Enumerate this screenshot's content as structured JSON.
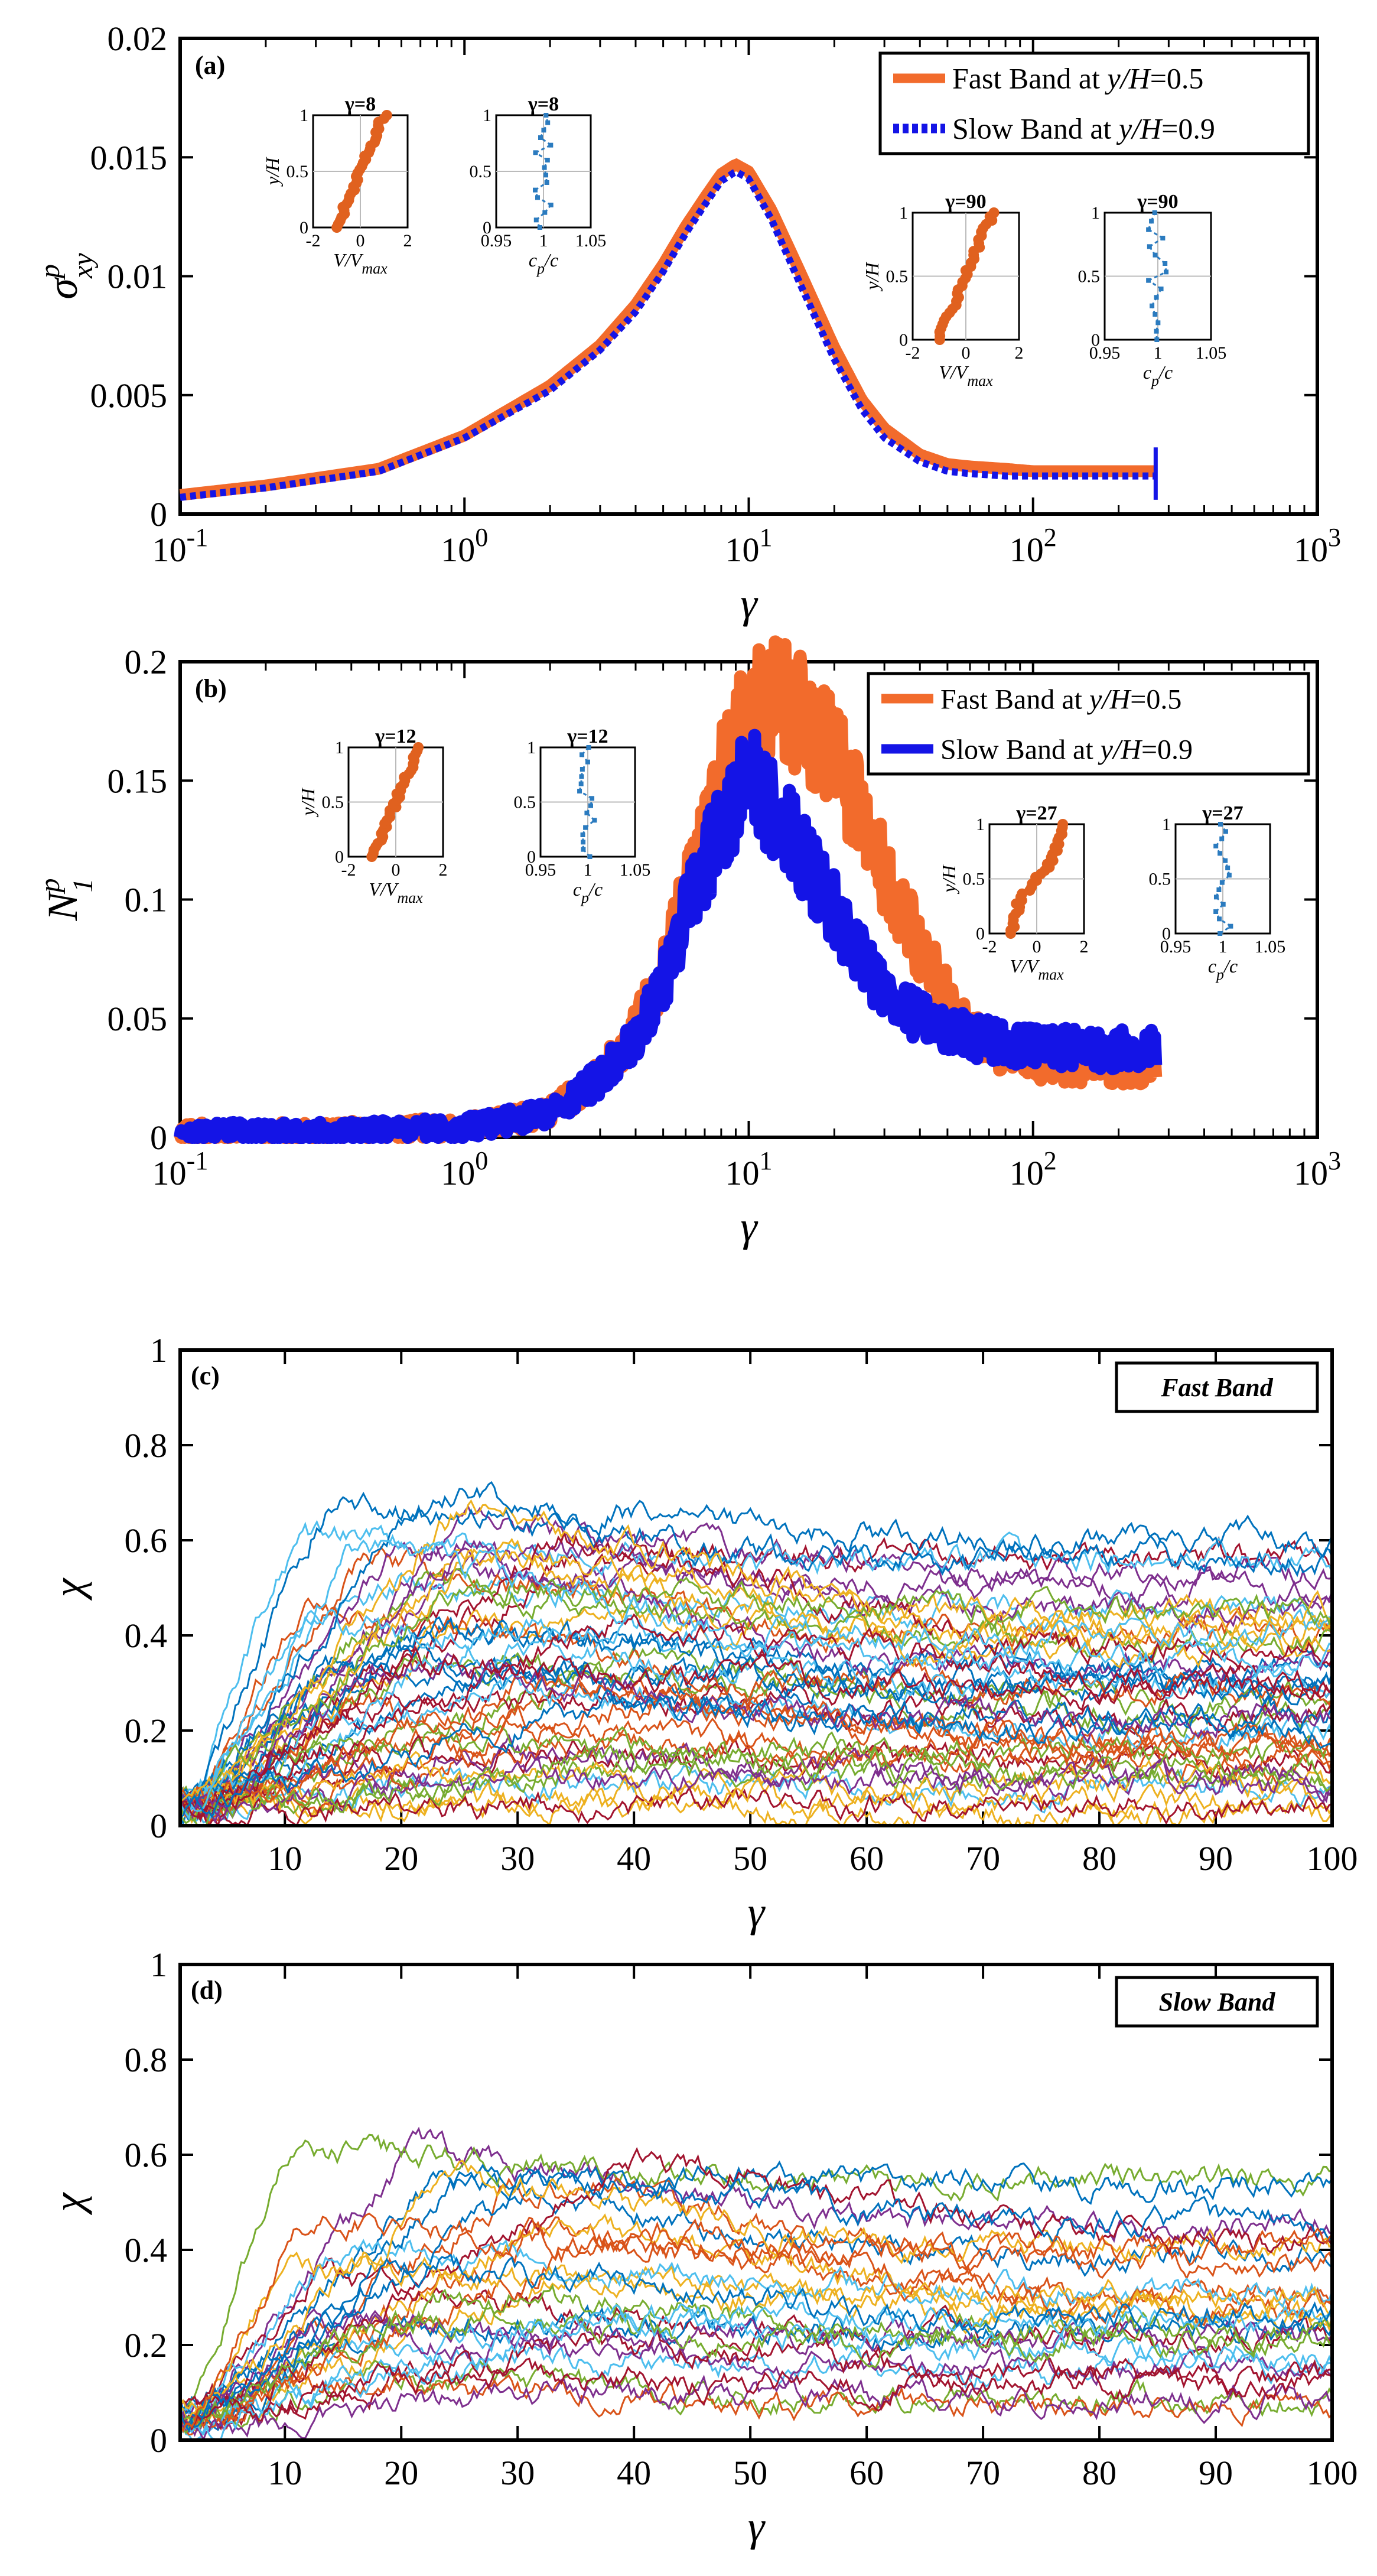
{
  "chart_data": [
    {
      "type": "line",
      "panel_label": "(a)",
      "xscale": "log",
      "xlim": [
        0.1,
        1000
      ],
      "ylim": [
        0,
        0.02
      ],
      "xlabel": "γ",
      "ylabel": {
        "base": "σ",
        "sup": "p",
        "sub": "xy"
      },
      "xtick_labels": [
        {
          "base": "10",
          "exp": "-1"
        },
        {
          "base": "10",
          "exp": "0"
        },
        {
          "base": "10",
          "exp": "1"
        },
        {
          "base": "10",
          "exp": "2"
        },
        {
          "base": "10",
          "exp": "3"
        }
      ],
      "yticks": [
        0,
        0.005,
        0.01,
        0.015,
        0.02
      ],
      "ytick_labels": [
        "0",
        "0.005",
        "0.01",
        "0.015",
        "0.02"
      ],
      "legend": {
        "position": "top-right",
        "entries": [
          {
            "prefix": "Fast Band at ",
            "var": "y/H",
            "suffix": "=0.5",
            "color": "#f26b2c",
            "style": "solid"
          },
          {
            "prefix": "Slow Band at ",
            "var": "y/H",
            "suffix": "=0.9",
            "color": "#1414e6",
            "style": "dotted"
          }
        ]
      },
      "series": [
        {
          "name": "Fast Band at y/H=0.5",
          "color": "#f26b2c",
          "x": [
            0.1,
            0.2,
            0.5,
            1,
            2,
            3,
            4,
            5,
            6,
            7,
            8,
            9,
            10,
            12,
            15,
            20,
            25,
            30,
            40,
            50,
            60,
            80,
            100,
            150,
            200,
            270
          ],
          "y": [
            0.0008,
            0.0012,
            0.0019,
            0.0033,
            0.0054,
            0.0071,
            0.0088,
            0.0105,
            0.0121,
            0.0133,
            0.0143,
            0.0147,
            0.0144,
            0.0128,
            0.0103,
            0.007,
            0.0048,
            0.0036,
            0.0025,
            0.0021,
            0.002,
            0.0019,
            0.0018,
            0.0018,
            0.0018,
            0.0018
          ]
        },
        {
          "name": "Slow Band at y/H=0.9",
          "color": "#1414e6",
          "x": [
            0.1,
            0.2,
            0.5,
            1,
            2,
            3,
            4,
            5,
            6,
            7,
            8,
            9,
            10,
            12,
            15,
            20,
            25,
            30,
            40,
            50,
            60,
            80,
            100,
            150,
            200,
            270
          ],
          "y": [
            0.0007,
            0.0011,
            0.0018,
            0.0032,
            0.0052,
            0.0069,
            0.0085,
            0.0102,
            0.0118,
            0.013,
            0.014,
            0.0144,
            0.0141,
            0.0124,
            0.0098,
            0.0065,
            0.0044,
            0.0032,
            0.0022,
            0.0018,
            0.0017,
            0.0016,
            0.0016,
            0.0016,
            0.0016,
            0.0016
          ]
        }
      ],
      "insets": [
        {
          "title": "γ=8",
          "kind": "velocity",
          "xticks": [
            -2,
            0,
            2
          ],
          "xtick_labels": [
            "-2",
            "0",
            "2"
          ],
          "yticks": [
            0,
            0.5,
            1
          ],
          "ytick_labels": [
            "0",
            "0.5",
            "1"
          ],
          "xlabel": {
            "base": "V/V",
            "sub": "max"
          },
          "ylabel": "y/H"
        },
        {
          "title": "γ=8",
          "kind": "packing",
          "xticks": [
            0.95,
            1,
            1.05
          ],
          "xtick_labels": [
            "0.95",
            "1",
            "1.05"
          ],
          "yticks": [
            0,
            0.5,
            1
          ],
          "ytick_labels": [
            "0",
            "0.5",
            "1"
          ],
          "xlabel": {
            "base": "c",
            "sub": "p",
            "rest": "/c"
          },
          "ylabel": ""
        },
        {
          "title": "γ=90",
          "kind": "velocity",
          "xticks": [
            -2,
            0,
            2
          ],
          "xtick_labels": [
            "-2",
            "0",
            "2"
          ],
          "yticks": [
            0,
            0.5,
            1
          ],
          "ytick_labels": [
            "0",
            "0.5",
            "1"
          ],
          "xlabel": {
            "base": "V/V",
            "sub": "max"
          },
          "ylabel": "y/H"
        },
        {
          "title": "γ=90",
          "kind": "packing",
          "xticks": [
            0.95,
            1,
            1.05
          ],
          "xtick_labels": [
            "0.95",
            "1",
            "1.05"
          ],
          "yticks": [
            0,
            0.5,
            1
          ],
          "ytick_labels": [
            "0",
            "0.5",
            "1"
          ],
          "xlabel": {
            "base": "c",
            "sub": "p",
            "rest": "/c"
          },
          "ylabel": ""
        }
      ]
    },
    {
      "type": "line",
      "panel_label": "(b)",
      "xscale": "log",
      "xlim": [
        0.1,
        1000
      ],
      "ylim": [
        0,
        0.2
      ],
      "xlabel": "γ",
      "ylabel": {
        "base": "N",
        "sup": "p",
        "sub": "1"
      },
      "xtick_labels": [
        {
          "base": "10",
          "exp": "-1"
        },
        {
          "base": "10",
          "exp": "0"
        },
        {
          "base": "10",
          "exp": "1"
        },
        {
          "base": "10",
          "exp": "2"
        },
        {
          "base": "10",
          "exp": "3"
        }
      ],
      "yticks": [
        0,
        0.05,
        0.1,
        0.15,
        0.2
      ],
      "ytick_labels": [
        "0",
        "0.05",
        "0.1",
        "0.15",
        "0.2"
      ],
      "legend": {
        "position": "top-right",
        "entries": [
          {
            "prefix": "Fast Band at ",
            "var": "y/H",
            "suffix": "=0.5",
            "color": "#f26b2c",
            "style": "solid"
          },
          {
            "prefix": "Slow Band at ",
            "var": "y/H",
            "suffix": "=0.9",
            "color": "#1414e6",
            "style": "solid"
          }
        ]
      },
      "series": [
        {
          "name": "Fast Band at y/H=0.5",
          "color": "#f26b2c",
          "x": [
            0.1,
            0.3,
            1,
            2,
            3,
            4,
            5,
            6,
            8,
            10,
            12,
            15,
            20,
            25,
            30,
            40,
            50,
            60,
            80,
            100,
            150,
            200,
            270
          ],
          "y": [
            0.002,
            0.002,
            0.004,
            0.01,
            0.025,
            0.045,
            0.07,
            0.1,
            0.15,
            0.18,
            0.185,
            0.178,
            0.16,
            0.135,
            0.11,
            0.08,
            0.06,
            0.045,
            0.035,
            0.032,
            0.03,
            0.03,
            0.03
          ]
        },
        {
          "name": "Slow Band at y/H=0.9",
          "color": "#1414e6",
          "x": [
            0.1,
            0.3,
            1,
            2,
            3,
            4,
            5,
            6,
            8,
            10,
            12,
            15,
            20,
            25,
            30,
            40,
            50,
            60,
            80,
            100,
            150,
            200,
            270
          ],
          "y": [
            0.002,
            0.002,
            0.004,
            0.01,
            0.025,
            0.042,
            0.065,
            0.095,
            0.13,
            0.15,
            0.14,
            0.12,
            0.095,
            0.075,
            0.06,
            0.05,
            0.045,
            0.042,
            0.04,
            0.038,
            0.037,
            0.037,
            0.037
          ]
        }
      ],
      "insets": [
        {
          "title": "γ=12",
          "kind": "velocity",
          "xticks": [
            -2,
            0,
            2
          ],
          "xtick_labels": [
            "-2",
            "0",
            "2"
          ],
          "yticks": [
            0,
            0.5,
            1
          ],
          "ytick_labels": [
            "0",
            "0.5",
            "1"
          ],
          "xlabel": {
            "base": "V/V",
            "sub": "max"
          },
          "ylabel": "y/H"
        },
        {
          "title": "γ=12",
          "kind": "packing",
          "xticks": [
            0.95,
            1,
            1.05
          ],
          "xtick_labels": [
            "0.95",
            "1",
            "1.05"
          ],
          "yticks": [
            0,
            0.5,
            1
          ],
          "ytick_labels": [
            "0",
            "0.5",
            "1"
          ],
          "xlabel": {
            "base": "c",
            "sub": "p",
            "rest": "/c"
          },
          "ylabel": ""
        },
        {
          "title": "γ=27",
          "kind": "velocity",
          "xticks": [
            -2,
            0,
            2
          ],
          "xtick_labels": [
            "-2",
            "0",
            "2"
          ],
          "yticks": [
            0,
            0.5,
            1
          ],
          "ytick_labels": [
            "0",
            "0.5",
            "1"
          ],
          "xlabel": {
            "base": "V/V",
            "sub": "max"
          },
          "ylabel": "y/H"
        },
        {
          "title": "γ=27",
          "kind": "packing",
          "xticks": [
            0.95,
            1,
            1.05
          ],
          "xtick_labels": [
            "0.95",
            "1",
            "1.05"
          ],
          "yticks": [
            0,
            0.5,
            1
          ],
          "ytick_labels": [
            "0",
            "0.5",
            "1"
          ],
          "xlabel": {
            "base": "c",
            "sub": "p",
            "rest": "/c"
          },
          "ylabel": ""
        }
      ]
    },
    {
      "type": "line",
      "panel_label": "(c)",
      "band_label": "Fast Band",
      "xscale": "linear",
      "xlim": [
        1,
        100
      ],
      "ylim": [
        0,
        1
      ],
      "xlabel": "γ",
      "ylabel": "χ",
      "xticks": [
        10,
        20,
        30,
        40,
        50,
        60,
        70,
        80,
        90,
        100
      ],
      "xtick_labels": [
        "10",
        "20",
        "30",
        "40",
        "50",
        "60",
        "70",
        "80",
        "90",
        "100"
      ],
      "yticks": [
        0,
        0.2,
        0.4,
        0.6,
        0.8,
        1
      ],
      "ytick_labels": [
        "0",
        "0.2",
        "0.4",
        "0.6",
        "0.8",
        "1"
      ],
      "series_count": 50,
      "series_summary": "many noisy per-particle trajectories rising from ~0.05 to peaks up to ~0.75 near γ≈13–25, then spreading between ~0.05 and ~0.6 up to γ=100"
    },
    {
      "type": "line",
      "panel_label": "(d)",
      "band_label": "Slow Band",
      "xscale": "linear",
      "xlim": [
        1,
        100
      ],
      "ylim": [
        0,
        1
      ],
      "xlabel": "γ",
      "ylabel": "χ",
      "xticks": [
        10,
        20,
        30,
        40,
        50,
        60,
        70,
        80,
        90,
        100
      ],
      "xtick_labels": [
        "10",
        "20",
        "30",
        "40",
        "50",
        "60",
        "70",
        "80",
        "90",
        "100"
      ],
      "yticks": [
        0,
        0.2,
        0.4,
        0.6,
        0.8,
        1
      ],
      "ytick_labels": [
        "0",
        "0.2",
        "0.4",
        "0.6",
        "0.8",
        "1"
      ],
      "series_count": 30,
      "series_summary": "noisy per-particle trajectories rising from ~0.05 to plateaus between ~0.05 and ~0.62 (peak ~0.63 near γ≈18), roughly flat up to γ=100"
    }
  ],
  "colors": {
    "fast": "#f26b2c",
    "slow": "#1414e6",
    "inset_orange": "#e0611f",
    "inset_blue": "#2b7bbf",
    "matlab_cycle": [
      "#0072bd",
      "#d95319",
      "#edb120",
      "#7e2f8e",
      "#77ac30",
      "#4dbeee",
      "#a2142f"
    ]
  }
}
